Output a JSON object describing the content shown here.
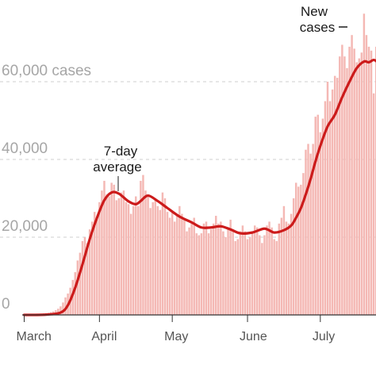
{
  "chart_data": {
    "type": "bar",
    "overlay": "line",
    "x_unit": "day",
    "ylim": [
      0,
      80000
    ],
    "yticks": [
      {
        "value": 0,
        "label": "0"
      },
      {
        "value": 20000,
        "label": "20,000"
      },
      {
        "value": 40000,
        "label": "40,000"
      },
      {
        "value": 60000,
        "label": "60,000 cases"
      }
    ],
    "xticks": [
      {
        "day": 1,
        "label": "March"
      },
      {
        "day": 32,
        "label": "April"
      },
      {
        "day": 62,
        "label": "May"
      },
      {
        "day": 93,
        "label": "June"
      },
      {
        "day": 123,
        "label": "July"
      }
    ],
    "grid": true,
    "series": [
      {
        "name": "New cases",
        "type": "bar",
        "color": "#f4b8b4"
      },
      {
        "name": "7-day average",
        "type": "line",
        "color": "#cc1b1b"
      }
    ],
    "annotations": {
      "avg_label_line1": "7-day",
      "avg_label_line2": "average",
      "bar_label_line1": "New",
      "bar_label_line2": "cases"
    },
    "avg_keypoints": [
      [
        1,
        0
      ],
      [
        10,
        80
      ],
      [
        16,
        600
      ],
      [
        19,
        2500
      ],
      [
        22,
        7000
      ],
      [
        25,
        13000
      ],
      [
        28,
        19500
      ],
      [
        31,
        25000
      ],
      [
        34,
        29500
      ],
      [
        37,
        31500
      ],
      [
        40,
        31200
      ],
      [
        44,
        29200
      ],
      [
        47,
        28500
      ],
      [
        49,
        29300
      ],
      [
        52,
        30700
      ],
      [
        56,
        29300
      ],
      [
        60,
        27500
      ],
      [
        65,
        25300
      ],
      [
        70,
        23800
      ],
      [
        74,
        22500
      ],
      [
        78,
        22500
      ],
      [
        82,
        22800
      ],
      [
        86,
        22000
      ],
      [
        90,
        21000
      ],
      [
        95,
        21200
      ],
      [
        100,
        22200
      ],
      [
        104,
        21200
      ],
      [
        108,
        21800
      ],
      [
        111,
        23000
      ],
      [
        113,
        25000
      ],
      [
        115,
        27500
      ],
      [
        117,
        31000
      ],
      [
        119,
        35000
      ],
      [
        121,
        39500
      ],
      [
        123,
        43500
      ],
      [
        126,
        48500
      ],
      [
        129,
        51500
      ],
      [
        132,
        56000
      ],
      [
        135,
        60000
      ],
      [
        138,
        63500
      ],
      [
        141,
        65200
      ],
      [
        143,
        65000
      ],
      [
        145,
        65600
      ],
      [
        147,
        65000
      ],
      [
        149,
        65300
      ]
    ],
    "daily_cases": [
      100,
      120,
      150,
      180,
      200,
      250,
      300,
      350,
      400,
      450,
      550,
      700,
      900,
      1200,
      1600,
      2200,
      3200,
      4500,
      5500,
      7000,
      9000,
      11000,
      14000,
      16000,
      19000,
      20000,
      18500,
      22000,
      24000,
      26500,
      25000,
      29000,
      32000,
      34500,
      31000,
      30500,
      34000,
      33500,
      29500,
      30000,
      31500,
      32000,
      29000,
      28500,
      26000,
      28000,
      30500,
      28000,
      34500,
      36000,
      32000,
      30500,
      27500,
      29000,
      29500,
      28000,
      27000,
      31500,
      30000,
      26500,
      25000,
      26500,
      24000,
      25500,
      28000,
      26000,
      24500,
      21500,
      22500,
      24000,
      25000,
      21000,
      20500,
      21000,
      23500,
      24000,
      21000,
      22000,
      23500,
      25500,
      23500,
      24000,
      21500,
      20000,
      22500,
      24500,
      22000,
      19000,
      19500,
      21500,
      23000,
      21500,
      19500,
      20000,
      21500,
      23000,
      22500,
      20500,
      18500,
      20500,
      23000,
      24000,
      22500,
      19500,
      19000,
      23500,
      25000,
      28000,
      24000,
      23500,
      26000,
      30000,
      34000,
      33000,
      33500,
      36500,
      42500,
      44000,
      41500,
      44000,
      51000,
      51500,
      47000,
      50500,
      55000,
      60000,
      55000,
      58000,
      61500,
      61000,
      66500,
      69500,
      66500,
      63500,
      69000,
      72000,
      68500,
      65000,
      66000,
      67500,
      77500,
      72000,
      69000,
      68000,
      57000,
      69000,
      66000
    ]
  }
}
